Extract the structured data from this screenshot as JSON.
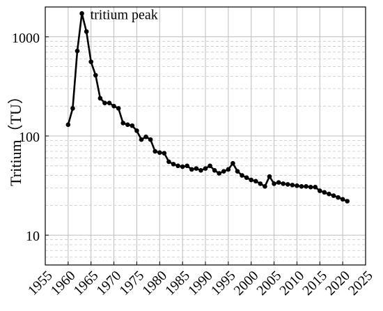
{
  "chart_data": {
    "type": "line",
    "title": "",
    "xlabel": "",
    "ylabel": "Tritium（TU）",
    "yscale": "log",
    "xlim": [
      1955,
      2025
    ],
    "ylim": [
      5,
      2000
    ],
    "xticks": [
      1955,
      1960,
      1965,
      1970,
      1975,
      1980,
      1985,
      1990,
      1995,
      2000,
      2005,
      2010,
      2015,
      2020,
      2025
    ],
    "yticks": [
      10,
      100,
      1000
    ],
    "xtick_labels": [
      "1955",
      "1960",
      "1965",
      "1970",
      "1975",
      "1980",
      "1985",
      "1990",
      "1995",
      "2000",
      "2005",
      "2010",
      "2015",
      "2020",
      "2025"
    ],
    "ytick_labels": [
      "10",
      "100",
      "1000"
    ],
    "grid": true,
    "annotations": [
      {
        "text": "tritium peak",
        "x": 1963,
        "y": 1720
      }
    ],
    "series": [
      {
        "x": [
          1960,
          1961,
          1962,
          1963,
          1964,
          1965,
          1966,
          1967,
          1968,
          1969,
          1970,
          1971,
          1972,
          1973,
          1974,
          1975,
          1976,
          1977,
          1978,
          1979,
          1980,
          1981,
          1982,
          1983,
          1984,
          1985,
          1986,
          1987,
          1988,
          1989,
          1990,
          1991,
          1992,
          1993,
          1994,
          1995,
          1996,
          1997,
          1998,
          1999,
          2000,
          2001,
          2002,
          2003,
          2004,
          2005,
          2006,
          2007,
          2008,
          2009,
          2010,
          2011,
          2012,
          2013,
          2014,
          2015,
          2016,
          2017,
          2018,
          2019,
          2020,
          2021
        ],
        "values": [
          130,
          190,
          720,
          1720,
          1130,
          560,
          410,
          240,
          215,
          215,
          200,
          190,
          135,
          130,
          127,
          113,
          92,
          98,
          92,
          70,
          68,
          67,
          55,
          52,
          50,
          49,
          50,
          46,
          47,
          45,
          47,
          50,
          45,
          42,
          44,
          46,
          53,
          44,
          40,
          38,
          36,
          35,
          33,
          31,
          39,
          33,
          34,
          33,
          32.5,
          32,
          31.5,
          31,
          31,
          30.5,
          30.5,
          28,
          27,
          26,
          25,
          24,
          23,
          22
        ]
      }
    ]
  }
}
